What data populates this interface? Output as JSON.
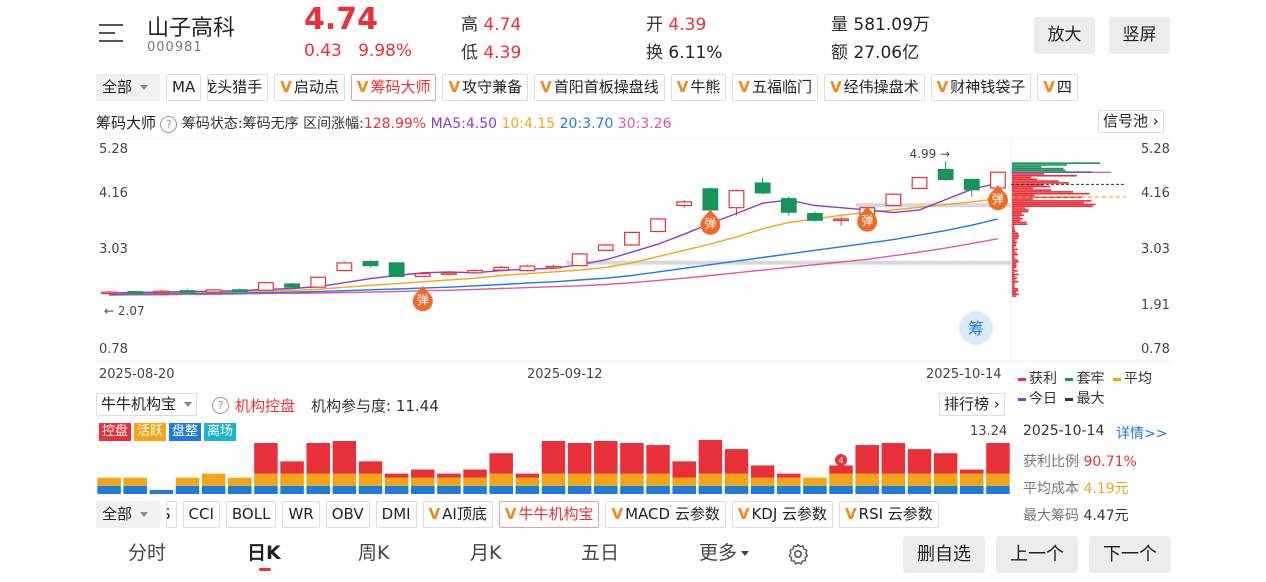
{
  "stock": {
    "name": "山子高科",
    "code": "000981",
    "price": "4.74",
    "change": "0.43",
    "change_pct": "9.98%",
    "high_label": "高",
    "high": "4.74",
    "low_label": "低",
    "low": "4.39",
    "open_label": "开",
    "open": "4.39",
    "turnover_label": "换",
    "turnover": "6.11%",
    "volume_label": "量",
    "volume": "581.09万",
    "amount_label": "额",
    "amount": "27.06亿"
  },
  "top_buttons": {
    "zoom": "放大",
    "portrait": "竖屏"
  },
  "indicator_chips": [
    {
      "label": "全部",
      "dropdown": true
    },
    {
      "label": "MA"
    },
    {
      "label": "龙头猎手",
      "clipped": true
    },
    {
      "label": "启动点",
      "v": true
    },
    {
      "label": "筹码大师",
      "v": true,
      "selected": true
    },
    {
      "label": "攻守兼备",
      "v": true
    },
    {
      "label": "首阳首板操盘线",
      "v": true
    },
    {
      "label": "牛熊",
      "v": true
    },
    {
      "label": "五福临门",
      "v": true
    },
    {
      "label": "经伟操盘术",
      "v": true
    },
    {
      "label": "财神钱袋子",
      "v": true
    },
    {
      "label": "四",
      "v": true
    }
  ],
  "main_indicator": {
    "name": "筹码大师",
    "status": "筹码状态:筹码无序",
    "range_change": "区间涨幅:128.99%",
    "ma5": "MA5:4.50",
    "ma10": "10:4.15",
    "ma20": "20:3.70",
    "ma30": "30:3.26",
    "signal_pool": "信号池"
  },
  "price_axis": [
    "5.28",
    "4.16",
    "3.03",
    "1.91",
    "0.78"
  ],
  "date_axis": [
    "2025-08-20",
    "2025-09-12",
    "2025-10-14"
  ],
  "annotations": {
    "high_mark": "4.99",
    "low_mark": "2.07",
    "rebound": "弹",
    "chip_icon": "筹"
  },
  "chip_legend": {
    "profit": "获利",
    "trapped": "套牢",
    "average": "平均",
    "today": "今日",
    "max": "最大"
  },
  "chip_stats": {
    "date": "2025-10-14",
    "detail": "详情>>",
    "profit_ratio_label": "获利比例",
    "profit_ratio": "90.71%",
    "avg_cost_label": "平均成本",
    "avg_cost": "4.19元",
    "max_chip_label": "最大筹码",
    "max_chip": "4.47元"
  },
  "sub_indicator": {
    "name": "牛牛机构宝",
    "control": "机构控盘",
    "participation": "机构参与度: 11.44",
    "rank": "排行榜",
    "max_value": "13.24",
    "tags": [
      {
        "label": "控盘",
        "color": "#e8303a"
      },
      {
        "label": "活跃",
        "color": "#f2a516"
      },
      {
        "label": "盘整",
        "color": "#1f7ad8"
      },
      {
        "label": "离场",
        "color": "#17b6c8"
      }
    ]
  },
  "bottom_chips": [
    {
      "label": "全部",
      "dropdown": true
    },
    {
      "label": "S",
      "clipped": true
    },
    {
      "label": "CCI"
    },
    {
      "label": "BOLL"
    },
    {
      "label": "WR"
    },
    {
      "label": "OBV"
    },
    {
      "label": "DMI"
    },
    {
      "label": "AI顶底",
      "v": true
    },
    {
      "label": "牛牛机构宝",
      "v": true,
      "selected": true
    },
    {
      "label": "MACD 云参数",
      "v": true
    },
    {
      "label": "KDJ 云参数",
      "v": true
    },
    {
      "label": "RSI 云参数",
      "v": true
    }
  ],
  "period_tabs": [
    "分时",
    "日K",
    "周K",
    "月K",
    "五日",
    "更多"
  ],
  "active_tab": "日K",
  "bottom_buttons": {
    "delete": "删自选",
    "prev": "上一个",
    "next": "下一个"
  },
  "colors": {
    "up": "#e8303a",
    "down": "#17945a",
    "ma5": "#8e3ad0",
    "ma10": "#f2a516",
    "ma20": "#1f7ad8",
    "ma30": "#e455a8"
  },
  "chart_data": {
    "type": "candlestick",
    "price_range": [
      0.78,
      5.28
    ],
    "candles": [
      {
        "o": 2.05,
        "c": 2.07,
        "h": 2.1,
        "l": 2.03
      },
      {
        "o": 2.08,
        "c": 2.06,
        "h": 2.1,
        "l": 2.04
      },
      {
        "o": 2.06,
        "c": 2.09,
        "h": 2.12,
        "l": 2.05
      },
      {
        "o": 2.1,
        "c": 2.07,
        "h": 2.13,
        "l": 2.06
      },
      {
        "o": 2.07,
        "c": 2.12,
        "h": 2.14,
        "l": 2.06
      },
      {
        "o": 2.12,
        "c": 2.1,
        "h": 2.15,
        "l": 2.08
      },
      {
        "o": 2.11,
        "c": 2.28,
        "h": 2.3,
        "l": 2.1
      },
      {
        "o": 2.25,
        "c": 2.18,
        "h": 2.28,
        "l": 2.16
      },
      {
        "o": 2.18,
        "c": 2.4,
        "h": 2.42,
        "l": 2.17
      },
      {
        "o": 2.55,
        "c": 2.72,
        "h": 2.75,
        "l": 2.53
      },
      {
        "o": 2.75,
        "c": 2.66,
        "h": 2.78,
        "l": 2.62
      },
      {
        "o": 2.72,
        "c": 2.42,
        "h": 2.74,
        "l": 2.4
      },
      {
        "o": 2.42,
        "c": 2.48,
        "h": 2.52,
        "l": 2.4
      },
      {
        "o": 2.47,
        "c": 2.5,
        "h": 2.53,
        "l": 2.45
      },
      {
        "o": 2.5,
        "c": 2.55,
        "h": 2.58,
        "l": 2.48
      },
      {
        "o": 2.56,
        "c": 2.62,
        "h": 2.66,
        "l": 2.54
      },
      {
        "o": 2.55,
        "c": 2.65,
        "h": 2.68,
        "l": 2.53
      },
      {
        "o": 2.62,
        "c": 2.64,
        "h": 2.68,
        "l": 2.6
      },
      {
        "o": 2.66,
        "c": 2.92,
        "h": 2.94,
        "l": 2.65
      },
      {
        "o": 3.0,
        "c": 3.12,
        "h": 3.15,
        "l": 2.98
      },
      {
        "o": 3.12,
        "c": 3.4,
        "h": 3.42,
        "l": 3.1
      },
      {
        "o": 3.42,
        "c": 3.7,
        "h": 3.72,
        "l": 3.4
      },
      {
        "o": 4.0,
        "c": 4.08,
        "h": 4.12,
        "l": 3.95
      },
      {
        "o": 4.37,
        "c": 3.9,
        "h": 4.4,
        "l": 3.88
      },
      {
        "o": 3.95,
        "c": 4.33,
        "h": 4.35,
        "l": 3.78
      },
      {
        "o": 4.5,
        "c": 4.28,
        "h": 4.62,
        "l": 4.25
      },
      {
        "o": 4.15,
        "c": 3.85,
        "h": 4.2,
        "l": 3.78
      },
      {
        "o": 3.82,
        "c": 3.67,
        "h": 3.86,
        "l": 3.64
      },
      {
        "o": 3.68,
        "c": 3.7,
        "h": 3.75,
        "l": 3.55
      },
      {
        "o": 3.8,
        "c": 3.95,
        "h": 3.98,
        "l": 3.78
      },
      {
        "o": 4.0,
        "c": 4.25,
        "h": 4.27,
        "l": 3.98
      },
      {
        "o": 4.38,
        "c": 4.62,
        "h": 4.64,
        "l": 4.36
      },
      {
        "o": 4.8,
        "c": 4.58,
        "h": 4.99,
        "l": 4.55
      },
      {
        "o": 4.58,
        "c": 4.35,
        "h": 4.6,
        "l": 4.2
      },
      {
        "o": 4.39,
        "c": 4.74,
        "h": 4.74,
        "l": 4.39
      }
    ],
    "ma5": [
      2.05,
      2.06,
      2.07,
      2.08,
      2.09,
      2.1,
      2.13,
      2.15,
      2.19,
      2.28,
      2.37,
      2.44,
      2.5,
      2.52,
      2.5,
      2.55,
      2.58,
      2.6,
      2.68,
      2.79,
      2.96,
      3.14,
      3.36,
      3.6,
      3.82,
      4.05,
      4.12,
      4.0,
      3.95,
      3.9,
      3.84,
      3.9,
      4.13,
      4.36,
      4.5
    ],
    "ma10": [
      2.04,
      2.05,
      2.06,
      2.06,
      2.07,
      2.08,
      2.1,
      2.11,
      2.13,
      2.18,
      2.22,
      2.26,
      2.3,
      2.34,
      2.38,
      2.44,
      2.48,
      2.52,
      2.56,
      2.62,
      2.72,
      2.86,
      3.0,
      3.14,
      3.3,
      3.48,
      3.62,
      3.7,
      3.78,
      3.85,
      3.9,
      3.96,
      4.02,
      4.08,
      4.15
    ],
    "ma20": [
      2.02,
      2.03,
      2.03,
      2.04,
      2.05,
      2.05,
      2.06,
      2.07,
      2.08,
      2.1,
      2.12,
      2.14,
      2.16,
      2.18,
      2.21,
      2.24,
      2.27,
      2.3,
      2.34,
      2.38,
      2.44,
      2.52,
      2.6,
      2.68,
      2.76,
      2.84,
      2.92,
      3.0,
      3.08,
      3.16,
      3.24,
      3.34,
      3.44,
      3.56,
      3.7
    ],
    "ma30": [
      2.0,
      2.01,
      2.01,
      2.02,
      2.02,
      2.03,
      2.04,
      2.04,
      2.05,
      2.06,
      2.07,
      2.08,
      2.1,
      2.11,
      2.13,
      2.15,
      2.17,
      2.19,
      2.21,
      2.24,
      2.28,
      2.33,
      2.38,
      2.44,
      2.5,
      2.56,
      2.62,
      2.68,
      2.74,
      2.8,
      2.88,
      2.96,
      3.05,
      3.15,
      3.26
    ],
    "institution": {
      "max": 13.24,
      "control": [
        0,
        0,
        0,
        0,
        0,
        0,
        7.5,
        3,
        7.5,
        8,
        3,
        1,
        2,
        1,
        2,
        5,
        1,
        8,
        7.5,
        8,
        7.5,
        7,
        4,
        9,
        6,
        3,
        1,
        0,
        2,
        7,
        7.5,
        6,
        5,
        1,
        7.5
      ],
      "active": [
        2,
        2,
        0,
        2,
        3,
        2,
        3,
        3,
        3,
        3,
        3,
        2,
        2,
        2,
        2,
        3,
        2,
        3,
        3,
        3,
        3,
        3,
        2,
        3,
        3,
        2,
        2,
        2,
        3,
        3,
        3,
        3,
        3,
        3,
        3
      ],
      "consolidate": [
        2,
        2,
        1,
        2,
        2,
        2,
        2,
        2,
        2,
        2,
        2,
        2,
        2,
        2,
        2,
        2,
        2,
        2,
        2,
        2,
        2,
        2,
        2,
        2,
        2,
        2,
        2,
        2,
        2,
        2,
        2,
        2,
        2,
        2,
        2
      ]
    }
  }
}
